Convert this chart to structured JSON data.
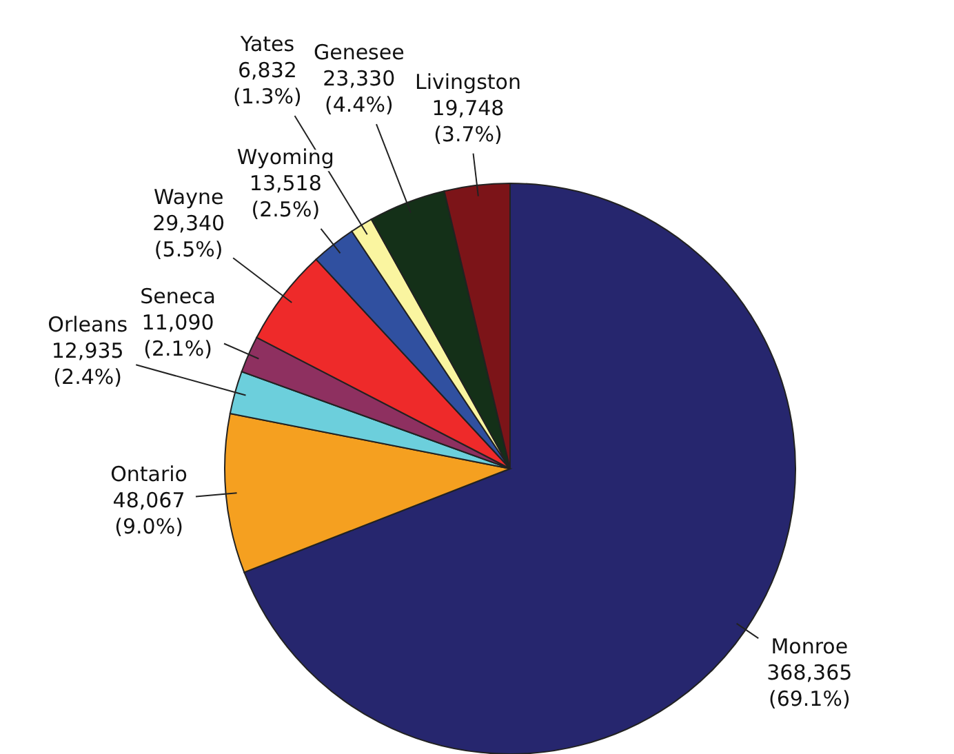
{
  "chart_data": {
    "type": "pie",
    "categories": [
      "Monroe",
      "Ontario",
      "Orleans",
      "Seneca",
      "Wayne",
      "Wyoming",
      "Yates",
      "Genesee",
      "Livingston"
    ],
    "values": [
      368365,
      48067,
      12935,
      11090,
      29340,
      13518,
      6832,
      23330,
      19748
    ],
    "value_labels": [
      "368,365\n(69.1%)",
      "48,067\n(9.0%)",
      "12,935\n(2.4%)",
      "11,090\n(2.1%)",
      "29,340\n(5.5%)",
      "13,518\n(2.5%)",
      "6,832\n(1.3%)",
      "23,330\n(4.4%)",
      "19,748\n(3.7%)"
    ],
    "colors": [
      "#26266e",
      "#f5a020",
      "#6ccfdc",
      "#8e3060",
      "#ee2a2a",
      "#3050a0",
      "#faf5a0",
      "#143018",
      "#7c1418"
    ],
    "legend": false
  }
}
